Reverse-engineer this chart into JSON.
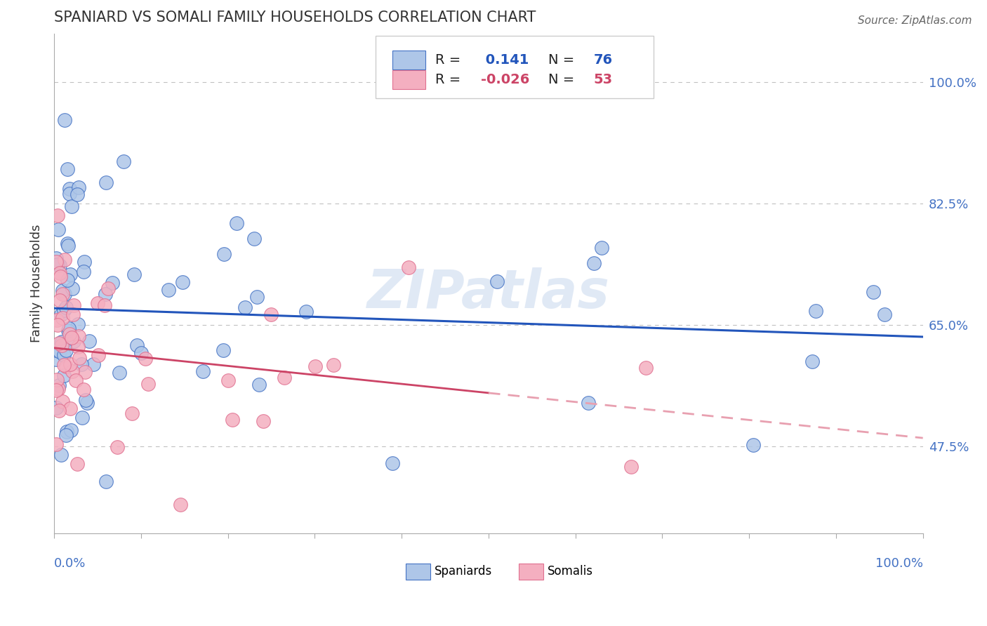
{
  "title": "SPANIARD VS SOMALI FAMILY HOUSEHOLDS CORRELATION CHART",
  "source_text": "Source: ZipAtlas.com",
  "ylabel": "Family Households",
  "y_ticks": [
    47.5,
    65.0,
    82.5,
    100.0
  ],
  "y_tick_labels": [
    "47.5%",
    "65.0%",
    "82.5%",
    "100.0%"
  ],
  "x_min": 0.0,
  "x_max": 100.0,
  "y_min": 35.0,
  "y_max": 107.0,
  "spaniard_color": "#aec6e8",
  "somali_color": "#f4afc0",
  "spaniard_edge_color": "#4472c4",
  "somali_edge_color": "#e07090",
  "spaniard_line_color": "#2255bb",
  "somali_line_solid_color": "#cc4466",
  "somali_line_dash_color": "#e8a0b0",
  "R_spaniard": 0.141,
  "N_spaniard": 76,
  "R_somali": -0.026,
  "N_somali": 53,
  "watermark": "ZIPatlas",
  "tick_color": "#4472c4",
  "grid_color": "#c0c0c0",
  "title_color": "#333333",
  "source_color": "#666666"
}
